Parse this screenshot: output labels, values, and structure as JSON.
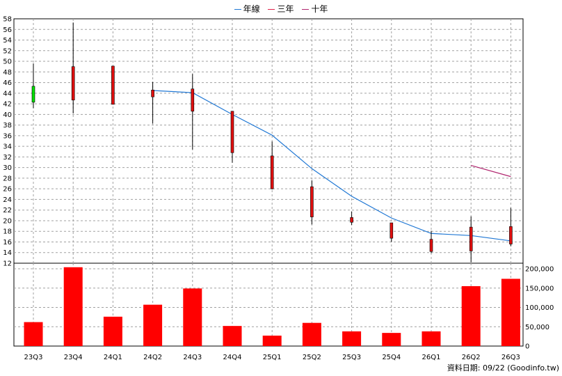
{
  "legend": {
    "series": [
      {
        "name": "年線",
        "color": "#1f77d4"
      },
      {
        "name": "三年",
        "color": "#e0204a"
      },
      {
        "name": "十年",
        "color": "#b0246e"
      }
    ]
  },
  "footnote": "資料日期: 09/22  (Goodinfo.tw)",
  "chart_data": [
    {
      "type": "candlestick",
      "title": "",
      "categories": [
        "23Q3",
        "23Q4",
        "24Q1",
        "24Q2",
        "24Q3",
        "24Q4",
        "25Q1",
        "25Q2",
        "25Q3",
        "25Q4",
        "26Q1",
        "26Q2",
        "26Q3"
      ],
      "ylim": [
        12,
        58
      ],
      "yticks": [
        12,
        14,
        16,
        18,
        20,
        22,
        24,
        26,
        28,
        30,
        32,
        34,
        36,
        38,
        40,
        42,
        44,
        46,
        48,
        50,
        52,
        54,
        56,
        58
      ],
      "grid": true,
      "candles": [
        {
          "open": 42.3,
          "close": 45.3,
          "high": 49.6,
          "low": 41.2
        },
        {
          "open": 49.0,
          "close": 42.7,
          "high": 57.3,
          "low": 40.2
        },
        {
          "open": 49.1,
          "close": 41.9,
          "high": 49.1,
          "low": 41.9
        },
        {
          "open": 44.6,
          "close": 43.3,
          "high": 46.1,
          "low": 38.3
        },
        {
          "open": 44.8,
          "close": 40.6,
          "high": 47.6,
          "low": 33.4
        },
        {
          "open": 40.6,
          "close": 32.8,
          "high": 40.6,
          "low": 30.9
        },
        {
          "open": 32.2,
          "close": 26.0,
          "high": 34.9,
          "low": 25.9
        },
        {
          "open": 26.4,
          "close": 20.7,
          "high": 27.6,
          "low": 19.3
        },
        {
          "open": 20.6,
          "close": 19.7,
          "high": 21.7,
          "low": 19.2
        },
        {
          "open": 19.6,
          "close": 16.7,
          "high": 19.6,
          "low": 16.0
        },
        {
          "open": 16.5,
          "close": 14.2,
          "high": 18.1,
          "low": 13.9
        },
        {
          "open": 18.8,
          "close": 14.3,
          "high": 20.8,
          "low": 12.2
        },
        {
          "open": 18.9,
          "close": 15.6,
          "high": 22.4,
          "low": 15.2
        }
      ],
      "series": [
        {
          "name": "年線",
          "color": "#1f77d4",
          "values": [
            null,
            null,
            null,
            44.5,
            44.1,
            40.0,
            36.1,
            29.8,
            24.6,
            20.5,
            17.6,
            17.2,
            16.2
          ]
        },
        {
          "name": "三年",
          "color": "#e0204a",
          "values": [
            null,
            null,
            null,
            null,
            null,
            null,
            null,
            null,
            null,
            null,
            null,
            null,
            null
          ]
        },
        {
          "name": "十年",
          "color": "#b0246e",
          "values": [
            null,
            null,
            null,
            null,
            null,
            null,
            null,
            null,
            null,
            null,
            null,
            30.4,
            28.3
          ]
        }
      ]
    },
    {
      "type": "bar",
      "categories": [
        "23Q3",
        "23Q4",
        "24Q1",
        "24Q2",
        "24Q3",
        "24Q4",
        "25Q1",
        "25Q2",
        "25Q3",
        "25Q4",
        "26Q1",
        "26Q2",
        "26Q3"
      ],
      "values": [
        62000,
        204000,
        76000,
        107000,
        149000,
        52000,
        27000,
        60000,
        38000,
        34000,
        38000,
        155000,
        174000
      ],
      "ylim": [
        0,
        200000
      ],
      "yticks": [
        0,
        50000,
        100000,
        150000,
        200000
      ],
      "ytick_labels": [
        "0",
        "50,000",
        "100,000",
        "150,000",
        "200,000"
      ],
      "color": "#ff0000",
      "grid": true
    }
  ],
  "colors": {
    "up": "#00e000",
    "down": "#e01010",
    "grid": "#a0a0a0",
    "volume": "#ff0000"
  }
}
